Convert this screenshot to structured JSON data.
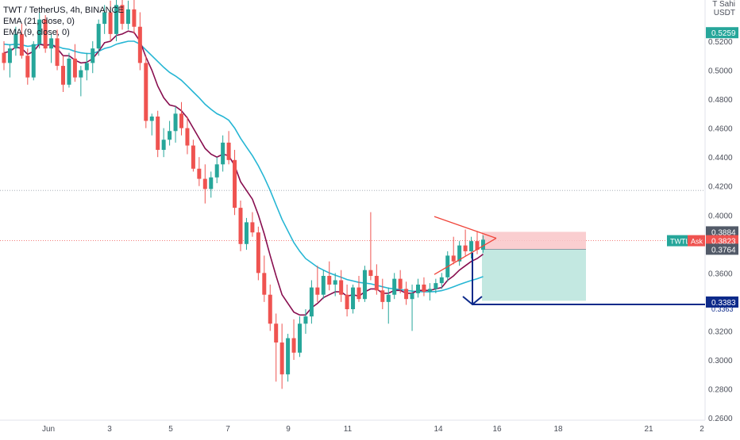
{
  "chart_data": {
    "type": "candlestick",
    "title": "TWT / TetherUS, 4h, BINANCE",
    "legend": [
      "EMA (21, close, 0)",
      "EMA (9, close, 0)"
    ],
    "currency": {
      "line1": "T Sahi",
      "line2": "USDT"
    },
    "xlabel": "",
    "ylabel": "",
    "x_ticks": [
      "Jun",
      "3",
      "5",
      "7",
      "9",
      "11",
      "14",
      "16",
      "18",
      "21",
      "2"
    ],
    "y_ticks": [
      "0.5200",
      "0.5000",
      "0.4800",
      "0.4600",
      "0.4400",
      "0.4200",
      "0.4000",
      "0.3800",
      "0.3600",
      "0.3400",
      "0.3200",
      "0.3000",
      "0.2800",
      "0.2600"
    ],
    "ylim": [
      0.25,
      0.55
    ],
    "price_badges": {
      "top": "0.5259",
      "upper": "0.3884",
      "current": "0.3823",
      "lower": "0.3764",
      "target": "0.3383",
      "target_hidden": "0.3363"
    },
    "symbol_tag": {
      "symbol": "TWTL",
      "label": "Ask"
    },
    "candles": [
      [
        0.512,
        0.52,
        0.5,
        0.505
      ],
      [
        0.505,
        0.518,
        0.495,
        0.515
      ],
      [
        0.515,
        0.53,
        0.51,
        0.525
      ],
      [
        0.525,
        0.532,
        0.508,
        0.51
      ],
      [
        0.51,
        0.515,
        0.49,
        0.495
      ],
      [
        0.495,
        0.52,
        0.493,
        0.518
      ],
      [
        0.518,
        0.54,
        0.515,
        0.535
      ],
      [
        0.535,
        0.538,
        0.512,
        0.515
      ],
      [
        0.515,
        0.525,
        0.505,
        0.522
      ],
      [
        0.522,
        0.528,
        0.5,
        0.503
      ],
      [
        0.503,
        0.51,
        0.485,
        0.49
      ],
      [
        0.49,
        0.512,
        0.488,
        0.508
      ],
      [
        0.508,
        0.518,
        0.492,
        0.495
      ],
      [
        0.495,
        0.503,
        0.482,
        0.5
      ],
      [
        0.5,
        0.512,
        0.493,
        0.505
      ],
      [
        0.505,
        0.52,
        0.498,
        0.515
      ],
      [
        0.515,
        0.535,
        0.51,
        0.532
      ],
      [
        0.532,
        0.545,
        0.525,
        0.54
      ],
      [
        0.54,
        0.548,
        0.52,
        0.525
      ],
      [
        0.525,
        0.55,
        0.52,
        0.545
      ],
      [
        0.545,
        0.55,
        0.528,
        0.532
      ],
      [
        0.532,
        0.548,
        0.528,
        0.542
      ],
      [
        0.542,
        0.55,
        0.525,
        0.53
      ],
      [
        0.53,
        0.54,
        0.5,
        0.505
      ],
      [
        0.505,
        0.51,
        0.46,
        0.465
      ],
      [
        0.465,
        0.47,
        0.455,
        0.468
      ],
      [
        0.468,
        0.472,
        0.44,
        0.445
      ],
      [
        0.445,
        0.46,
        0.44,
        0.452
      ],
      [
        0.452,
        0.465,
        0.448,
        0.458
      ],
      [
        0.458,
        0.475,
        0.45,
        0.47
      ],
      [
        0.47,
        0.478,
        0.455,
        0.46
      ],
      [
        0.46,
        0.468,
        0.442,
        0.448
      ],
      [
        0.448,
        0.452,
        0.43,
        0.432
      ],
      [
        0.432,
        0.44,
        0.42,
        0.425
      ],
      [
        0.425,
        0.435,
        0.408,
        0.418
      ],
      [
        0.418,
        0.43,
        0.412,
        0.426
      ],
      [
        0.426,
        0.44,
        0.422,
        0.435
      ],
      [
        0.435,
        0.455,
        0.43,
        0.45
      ],
      [
        0.45,
        0.458,
        0.435,
        0.438
      ],
      [
        0.438,
        0.445,
        0.4,
        0.405
      ],
      [
        0.405,
        0.41,
        0.375,
        0.38
      ],
      [
        0.38,
        0.398,
        0.376,
        0.395
      ],
      [
        0.395,
        0.402,
        0.385,
        0.388
      ],
      [
        0.388,
        0.392,
        0.355,
        0.36
      ],
      [
        0.36,
        0.372,
        0.34,
        0.345
      ],
      [
        0.345,
        0.352,
        0.32,
        0.325
      ],
      [
        0.325,
        0.332,
        0.285,
        0.312
      ],
      [
        0.312,
        0.325,
        0.28,
        0.29
      ],
      [
        0.29,
        0.318,
        0.285,
        0.315
      ],
      [
        0.315,
        0.328,
        0.3,
        0.305
      ],
      [
        0.305,
        0.33,
        0.302,
        0.325
      ],
      [
        0.325,
        0.335,
        0.318,
        0.33
      ],
      [
        0.33,
        0.355,
        0.325,
        0.35
      ],
      [
        0.35,
        0.365,
        0.34,
        0.345
      ],
      [
        0.345,
        0.362,
        0.342,
        0.358
      ],
      [
        0.358,
        0.368,
        0.348,
        0.352
      ],
      [
        0.352,
        0.36,
        0.344,
        0.355
      ],
      [
        0.355,
        0.362,
        0.34,
        0.345
      ],
      [
        0.345,
        0.352,
        0.33,
        0.335
      ],
      [
        0.335,
        0.352,
        0.332,
        0.35
      ],
      [
        0.35,
        0.358,
        0.34,
        0.342
      ],
      [
        0.342,
        0.365,
        0.34,
        0.362
      ],
      [
        0.362,
        0.402,
        0.355,
        0.358
      ],
      [
        0.358,
        0.366,
        0.345,
        0.348
      ],
      [
        0.348,
        0.356,
        0.335,
        0.34
      ],
      [
        0.34,
        0.35,
        0.325,
        0.345
      ],
      [
        0.345,
        0.36,
        0.342,
        0.356
      ],
      [
        0.356,
        0.362,
        0.346,
        0.349
      ],
      [
        0.349,
        0.354,
        0.338,
        0.342
      ],
      [
        0.342,
        0.352,
        0.32,
        0.346
      ],
      [
        0.346,
        0.356,
        0.343,
        0.352
      ],
      [
        0.352,
        0.357,
        0.344,
        0.347
      ],
      [
        0.347,
        0.353,
        0.341,
        0.349
      ],
      [
        0.349,
        0.356,
        0.346,
        0.353
      ],
      [
        0.353,
        0.36,
        0.349,
        0.357
      ],
      [
        0.357,
        0.375,
        0.354,
        0.372
      ],
      [
        0.372,
        0.385,
        0.366,
        0.368
      ],
      [
        0.368,
        0.382,
        0.365,
        0.379
      ],
      [
        0.379,
        0.39,
        0.372,
        0.375
      ],
      [
        0.375,
        0.385,
        0.37,
        0.382
      ],
      [
        0.382,
        0.389,
        0.373,
        0.376
      ],
      [
        0.376,
        0.386,
        0.374,
        0.383
      ]
    ],
    "ema21": [
      0.518,
      0.5175,
      0.518,
      0.5175,
      0.5165,
      0.517,
      0.518,
      0.5175,
      0.5175,
      0.5165,
      0.515,
      0.5145,
      0.513,
      0.512,
      0.5115,
      0.5115,
      0.513,
      0.515,
      0.516,
      0.518,
      0.519,
      0.52,
      0.52,
      0.518,
      0.514,
      0.51,
      0.506,
      0.502,
      0.4985,
      0.496,
      0.493,
      0.489,
      0.485,
      0.481,
      0.4765,
      0.473,
      0.47,
      0.468,
      0.4655,
      0.46,
      0.453,
      0.447,
      0.441,
      0.434,
      0.426,
      0.417,
      0.407,
      0.397,
      0.389,
      0.381,
      0.375,
      0.37,
      0.367,
      0.364,
      0.362,
      0.36,
      0.3585,
      0.357,
      0.3555,
      0.3545,
      0.3535,
      0.353,
      0.3525,
      0.3515,
      0.3505,
      0.3495,
      0.349,
      0.3485,
      0.348,
      0.3475,
      0.3472,
      0.347,
      0.347,
      0.3472,
      0.3478,
      0.349,
      0.3505,
      0.352,
      0.3535,
      0.3548,
      0.356,
      0.3575
    ],
    "ema9": [
      0.512,
      0.513,
      0.516,
      0.515,
      0.511,
      0.513,
      0.518,
      0.517,
      0.518,
      0.515,
      0.51,
      0.51,
      0.507,
      0.505,
      0.5055,
      0.508,
      0.513,
      0.519,
      0.52,
      0.524,
      0.525,
      0.527,
      0.526,
      0.52,
      0.509,
      0.5,
      0.489,
      0.481,
      0.476,
      0.475,
      0.472,
      0.467,
      0.46,
      0.453,
      0.446,
      0.442,
      0.44,
      0.442,
      0.441,
      0.434,
      0.423,
      0.417,
      0.411,
      0.4,
      0.387,
      0.372,
      0.358,
      0.345,
      0.339,
      0.333,
      0.331,
      0.331,
      0.336,
      0.339,
      0.343,
      0.345,
      0.347,
      0.347,
      0.344,
      0.345,
      0.344,
      0.347,
      0.349,
      0.349,
      0.346,
      0.346,
      0.348,
      0.348,
      0.346,
      0.346,
      0.348,
      0.348,
      0.348,
      0.349,
      0.35,
      0.355,
      0.358,
      0.362,
      0.365,
      0.368,
      0.37,
      0.373
    ],
    "colors": {
      "up": "#26a69a",
      "down": "#ef5350",
      "ema21": "#26b6d4",
      "ema9": "#880e4f",
      "arrow": "#0d2a8a",
      "triangle": "#f0453a",
      "stop_zone": "#f9c6c8",
      "target_zone": "#b9e4dc",
      "badge_green": "#26a69a",
      "badge_red": "#ef5350",
      "badge_gray": "#525a68",
      "badge_blue": "#0d2a8a"
    }
  }
}
